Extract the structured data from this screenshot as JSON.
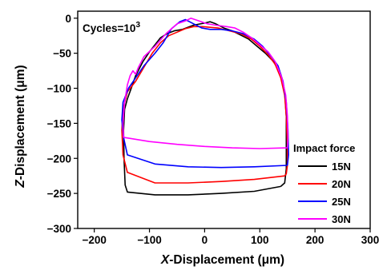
{
  "chart_data": {
    "type": "line",
    "annotation": {
      "text": "Cycles=10",
      "superscript": "3"
    },
    "xlabel": {
      "italic": "X",
      "rest": "-Displacement (μm)"
    },
    "ylabel": {
      "italic": "Z",
      "rest": "-Displacement (μm)"
    },
    "xlim": [
      -230,
      300
    ],
    "ylim": [
      -300,
      10
    ],
    "xticks": [
      -200,
      -100,
      0,
      100,
      200,
      300
    ],
    "xtick_labels": [
      "−200",
      "−100",
      "0",
      "100",
      "200",
      "300"
    ],
    "yticks": [
      0,
      -50,
      -100,
      -150,
      -200,
      -250,
      -300
    ],
    "ytick_labels": [
      "0",
      "−50",
      "−100",
      "−150",
      "−200",
      "−250",
      "−300"
    ],
    "grid": false,
    "legend": {
      "title": "Impact force",
      "placement": "right"
    },
    "series": [
      {
        "name": "15N",
        "color": "#000000",
        "points": [
          [
            138,
            -240
          ],
          [
            90,
            -247
          ],
          [
            30,
            -250
          ],
          [
            -30,
            -252
          ],
          [
            -90,
            -252
          ],
          [
            -140,
            -248
          ],
          [
            -144,
            -238
          ],
          [
            -146,
            -200
          ],
          [
            -147,
            -160
          ],
          [
            -145,
            -130
          ],
          [
            -140,
            -115
          ],
          [
            -133,
            -100
          ],
          [
            -125,
            -82
          ],
          [
            -112,
            -62
          ],
          [
            -100,
            -48
          ],
          [
            -90,
            -38
          ],
          [
            -80,
            -28
          ],
          [
            -68,
            -22
          ],
          [
            -55,
            -18
          ],
          [
            -40,
            -16
          ],
          [
            -20,
            -10
          ],
          [
            0,
            -7
          ],
          [
            10,
            -5
          ],
          [
            20,
            -8
          ],
          [
            35,
            -14
          ],
          [
            50,
            -18
          ],
          [
            65,
            -24
          ],
          [
            80,
            -30
          ],
          [
            95,
            -40
          ],
          [
            110,
            -50
          ],
          [
            125,
            -62
          ],
          [
            138,
            -80
          ],
          [
            145,
            -105
          ],
          [
            148,
            -140
          ],
          [
            148,
            -180
          ],
          [
            148,
            -215
          ],
          [
            145,
            -235
          ],
          [
            138,
            -240
          ]
        ]
      },
      {
        "name": "20N",
        "color": "#ff0000",
        "points": [
          [
            145,
            -225
          ],
          [
            90,
            -230
          ],
          [
            30,
            -233
          ],
          [
            -30,
            -235
          ],
          [
            -90,
            -235
          ],
          [
            -140,
            -220
          ],
          [
            -148,
            -195
          ],
          [
            -150,
            -160
          ],
          [
            -148,
            -130
          ],
          [
            -140,
            -105
          ],
          [
            -125,
            -90
          ],
          [
            -110,
            -70
          ],
          [
            -95,
            -50
          ],
          [
            -80,
            -35
          ],
          [
            -65,
            -25
          ],
          [
            -50,
            -20
          ],
          [
            -35,
            -15
          ],
          [
            -20,
            -12
          ],
          [
            -5,
            -12
          ],
          [
            10,
            -13
          ],
          [
            25,
            -14
          ],
          [
            45,
            -18
          ],
          [
            65,
            -22
          ],
          [
            85,
            -30
          ],
          [
            100,
            -40
          ],
          [
            115,
            -52
          ],
          [
            128,
            -66
          ],
          [
            138,
            -85
          ],
          [
            145,
            -110
          ],
          [
            148,
            -140
          ],
          [
            150,
            -180
          ],
          [
            150,
            -210
          ],
          [
            148,
            -222
          ],
          [
            145,
            -225
          ]
        ]
      },
      {
        "name": "25N",
        "color": "#0000ff",
        "points": [
          [
            150,
            -210
          ],
          [
            90,
            -212
          ],
          [
            30,
            -213
          ],
          [
            -30,
            -212
          ],
          [
            -90,
            -208
          ],
          [
            -140,
            -195
          ],
          [
            -147,
            -170
          ],
          [
            -150,
            -145
          ],
          [
            -148,
            -120
          ],
          [
            -138,
            -100
          ],
          [
            -125,
            -85
          ],
          [
            -110,
            -68
          ],
          [
            -90,
            -50
          ],
          [
            -75,
            -35
          ],
          [
            -60,
            -15
          ],
          [
            -45,
            -5
          ],
          [
            -35,
            -2
          ],
          [
            -20,
            -8
          ],
          [
            -5,
            -14
          ],
          [
            10,
            -16
          ],
          [
            30,
            -16
          ],
          [
            50,
            -18
          ],
          [
            70,
            -22
          ],
          [
            90,
            -30
          ],
          [
            105,
            -40
          ],
          [
            120,
            -54
          ],
          [
            133,
            -68
          ],
          [
            142,
            -90
          ],
          [
            148,
            -120
          ],
          [
            151,
            -160
          ],
          [
            152,
            -195
          ],
          [
            150,
            -210
          ]
        ]
      },
      {
        "name": "30N",
        "color": "#ff00ff",
        "points": [
          [
            -147,
            -170
          ],
          [
            -100,
            -176
          ],
          [
            -50,
            -180
          ],
          [
            0,
            -183
          ],
          [
            50,
            -185
          ],
          [
            100,
            -186
          ],
          [
            150,
            -185
          ],
          [
            151,
            -170
          ],
          [
            150,
            -140
          ],
          [
            147,
            -110
          ],
          [
            140,
            -85
          ],
          [
            128,
            -62
          ],
          [
            115,
            -48
          ],
          [
            100,
            -38
          ],
          [
            85,
            -28
          ],
          [
            70,
            -20
          ],
          [
            55,
            -14
          ],
          [
            40,
            -12
          ],
          [
            20,
            -10
          ],
          [
            5,
            -8
          ],
          [
            -10,
            -4
          ],
          [
            -25,
            0
          ],
          [
            -35,
            -4
          ],
          [
            -50,
            -8
          ],
          [
            -70,
            -22
          ],
          [
            -90,
            -40
          ],
          [
            -110,
            -55
          ],
          [
            -120,
            -70
          ],
          [
            -125,
            -80
          ],
          [
            -130,
            -75
          ],
          [
            -135,
            -82
          ],
          [
            -140,
            -95
          ],
          [
            -145,
            -120
          ],
          [
            -148,
            -150
          ],
          [
            -147,
            -170
          ]
        ]
      }
    ]
  }
}
